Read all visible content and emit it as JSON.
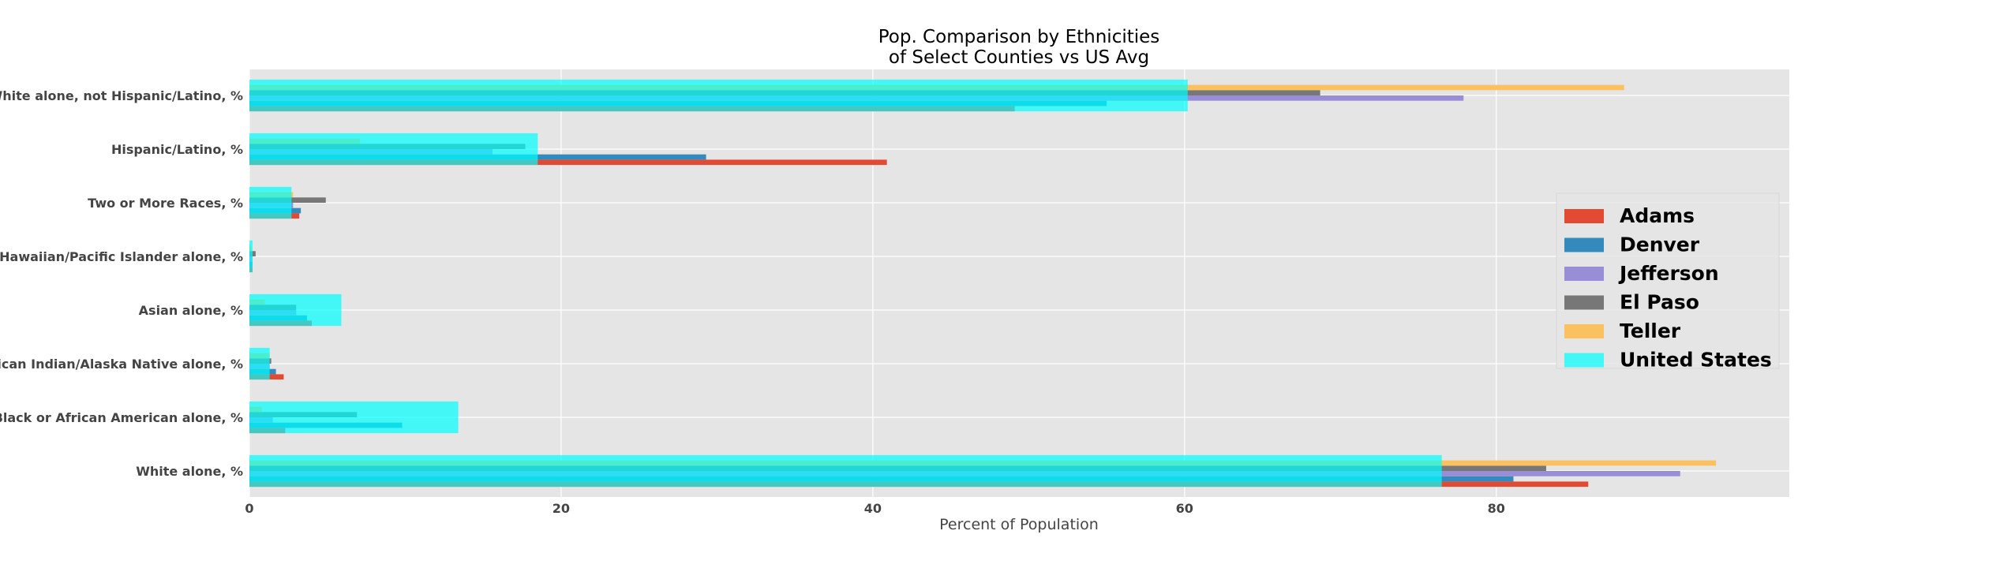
{
  "chart_data": {
    "type": "bar",
    "orientation": "horizontal",
    "title_lines": [
      "Pop. Comparison by Ethnicities",
      "of Select Counties vs US Avg"
    ],
    "xlabel": "Percent of Population",
    "ylabel": "",
    "xlim": [
      0,
      98.8
    ],
    "xticks": [
      0,
      20,
      40,
      60,
      80
    ],
    "grid": true,
    "legend_position": "right",
    "categories": [
      "White alone, %",
      "Black or African American alone, %",
      "American Indian/Alaska Native alone, %",
      "Asian alone, %",
      "Native Hawaiian/Pacific Islander alone, %",
      "Two or More Races, %",
      "Hispanic/Latino, %",
      "White alone, not Hispanic/Latino, %"
    ],
    "series": [
      {
        "name": "Adams",
        "color": "#e24a33",
        "values": [
          85.9,
          2.3,
          2.2,
          4.0,
          0.2,
          3.2,
          40.9,
          49.1
        ]
      },
      {
        "name": "Denver",
        "color": "#348abd",
        "values": [
          81.1,
          9.8,
          1.7,
          3.7,
          0.2,
          3.3,
          29.3,
          55.0
        ]
      },
      {
        "name": "Jefferson",
        "color": "#988ed5",
        "values": [
          91.8,
          1.5,
          1.3,
          3.0,
          0.2,
          2.8,
          15.6,
          77.9
        ]
      },
      {
        "name": "El Paso",
        "color": "#777777",
        "values": [
          83.2,
          6.9,
          1.4,
          3.0,
          0.4,
          4.9,
          17.7,
          68.7
        ]
      },
      {
        "name": "Teller",
        "color": "#fbc15e",
        "values": [
          94.1,
          0.8,
          1.3,
          1.0,
          0.1,
          2.8,
          7.1,
          88.2
        ]
      },
      {
        "name": "United States",
        "color": "#00ffff",
        "values": [
          76.5,
          13.4,
          1.3,
          5.9,
          0.2,
          2.7,
          18.5,
          60.2
        ]
      }
    ]
  }
}
